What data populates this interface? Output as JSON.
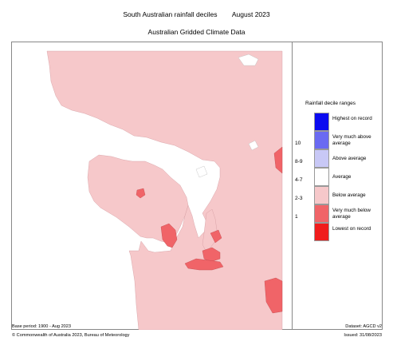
{
  "header": {
    "title": "South Australian rainfall deciles",
    "period": "August 2023",
    "subtitle": "Australian Gridded Climate Data"
  },
  "legend": {
    "title": "Rainfall decile ranges",
    "items": [
      {
        "code": "",
        "label": "Highest on record",
        "color": "#0b0bf0"
      },
      {
        "code": "10",
        "label": "Very much above average",
        "color": "#6a6af2"
      },
      {
        "code": "8-9",
        "label": "Above average",
        "color": "#c8c8f6"
      },
      {
        "code": "4-7",
        "label": "Average",
        "color": "#ffffff"
      },
      {
        "code": "2-3",
        "label": "Below average",
        "color": "#f6c8ca"
      },
      {
        "code": "1",
        "label": "Very much below average",
        "color": "#f06468"
      },
      {
        "code": "",
        "label": "Lowest on record",
        "color": "#f01c1c"
      }
    ]
  },
  "footer": {
    "base_period": "Base period: 1900 - Aug 2023",
    "dataset": "Dataset: AGCD v2",
    "copyright": "© Commonwealth of Australia 2023, Bureau of Meteorology",
    "issued": "Issued: 31/08/2023"
  }
}
